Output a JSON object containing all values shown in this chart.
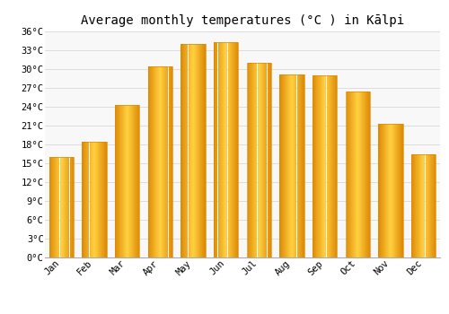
{
  "title": "Average monthly temperatures (°C ) in Kālpi",
  "months": [
    "Jan",
    "Feb",
    "Mar",
    "Apr",
    "May",
    "Jun",
    "Jul",
    "Aug",
    "Sep",
    "Oct",
    "Nov",
    "Dec"
  ],
  "temperatures": [
    16.0,
    18.5,
    24.3,
    30.5,
    34.0,
    34.3,
    31.0,
    29.2,
    29.0,
    26.5,
    21.3,
    16.5
  ],
  "bar_color_center": "#FFD04A",
  "bar_color_edge": "#E08A00",
  "bar_color_mid": "#FFB300",
  "ylim": [
    0,
    36
  ],
  "yticks": [
    0,
    3,
    6,
    9,
    12,
    15,
    18,
    21,
    24,
    27,
    30,
    33,
    36
  ],
  "ytick_labels": [
    "0°C",
    "3°C",
    "6°C",
    "9°C",
    "12°C",
    "15°C",
    "18°C",
    "21°C",
    "24°C",
    "27°C",
    "30°C",
    "33°C",
    "36°C"
  ],
  "grid_color": "#dddddd",
  "background_color": "#ffffff",
  "plot_bg_color": "#f8f8f8",
  "title_fontsize": 10,
  "tick_fontsize": 7.5,
  "bar_width": 0.75
}
